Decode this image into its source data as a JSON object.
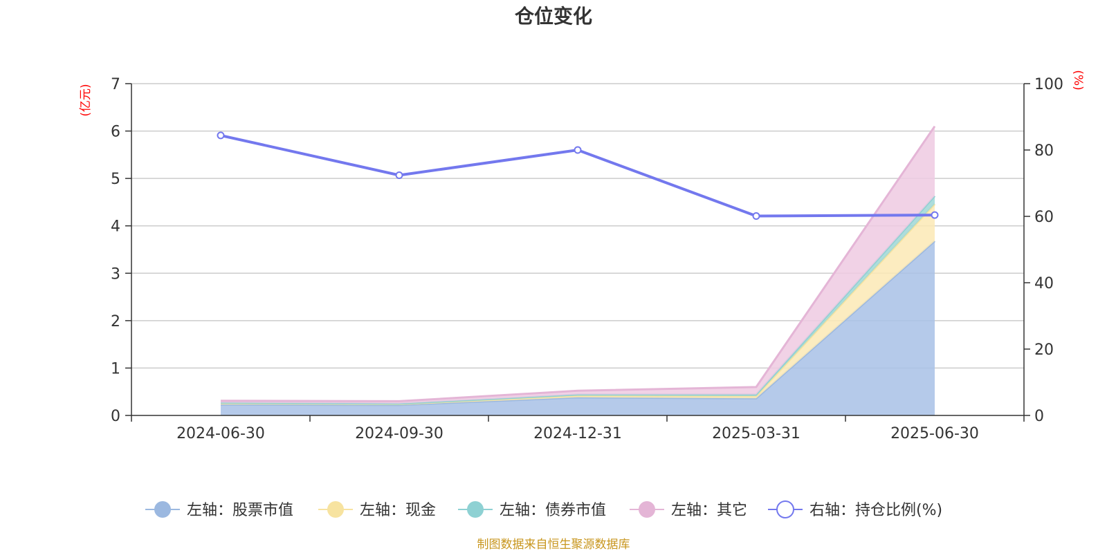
{
  "chart_data": {
    "type": "area",
    "title": "仓位变化",
    "categories": [
      "2024-06-30",
      "2024-09-30",
      "2024-12-31",
      "2025-03-31",
      "2025-06-30"
    ],
    "left_axis": {
      "unit": "(亿元)",
      "ylim": [
        0,
        7
      ],
      "ticks": [
        "0",
        "1",
        "2",
        "3",
        "4",
        "5",
        "6",
        "7"
      ]
    },
    "right_axis": {
      "unit": "(%)",
      "ylim": [
        0,
        100
      ],
      "ticks": [
        "0",
        "20",
        "40",
        "60",
        "80",
        "100"
      ]
    },
    "grid": true,
    "legend_position": "bottom",
    "series": [
      {
        "name": "左轴：股票市值",
        "axis": "left",
        "stacked": true,
        "color": "#a8c1e6",
        "line_color": "#9bb8e0",
        "values": [
          0.23,
          0.22,
          0.38,
          0.36,
          3.68
        ]
      },
      {
        "name": "左轴：现金",
        "axis": "left",
        "stacked": true,
        "color": "#fbe9b5",
        "line_color": "#f7e3a0",
        "values": [
          0.03,
          0.02,
          0.04,
          0.05,
          0.78
        ]
      },
      {
        "name": "左轴：债券市值",
        "axis": "left",
        "stacked": true,
        "color": "#9fd7d6",
        "line_color": "#8ed1d3",
        "values": [
          0.01,
          0.01,
          0.02,
          0.03,
          0.17
        ]
      },
      {
        "name": "左轴：其它",
        "axis": "left",
        "stacked": true,
        "color": "#efcae2",
        "line_color": "#e4b5d6",
        "values": [
          0.04,
          0.05,
          0.08,
          0.16,
          1.47
        ]
      },
      {
        "name": "右轴：持仓比例(%)",
        "axis": "right",
        "type": "line",
        "color": "#7378ee",
        "values": [
          84.4,
          72.4,
          80.0,
          60.1,
          60.4
        ]
      }
    ],
    "source": "制图数据来自恒生聚源数据库"
  }
}
